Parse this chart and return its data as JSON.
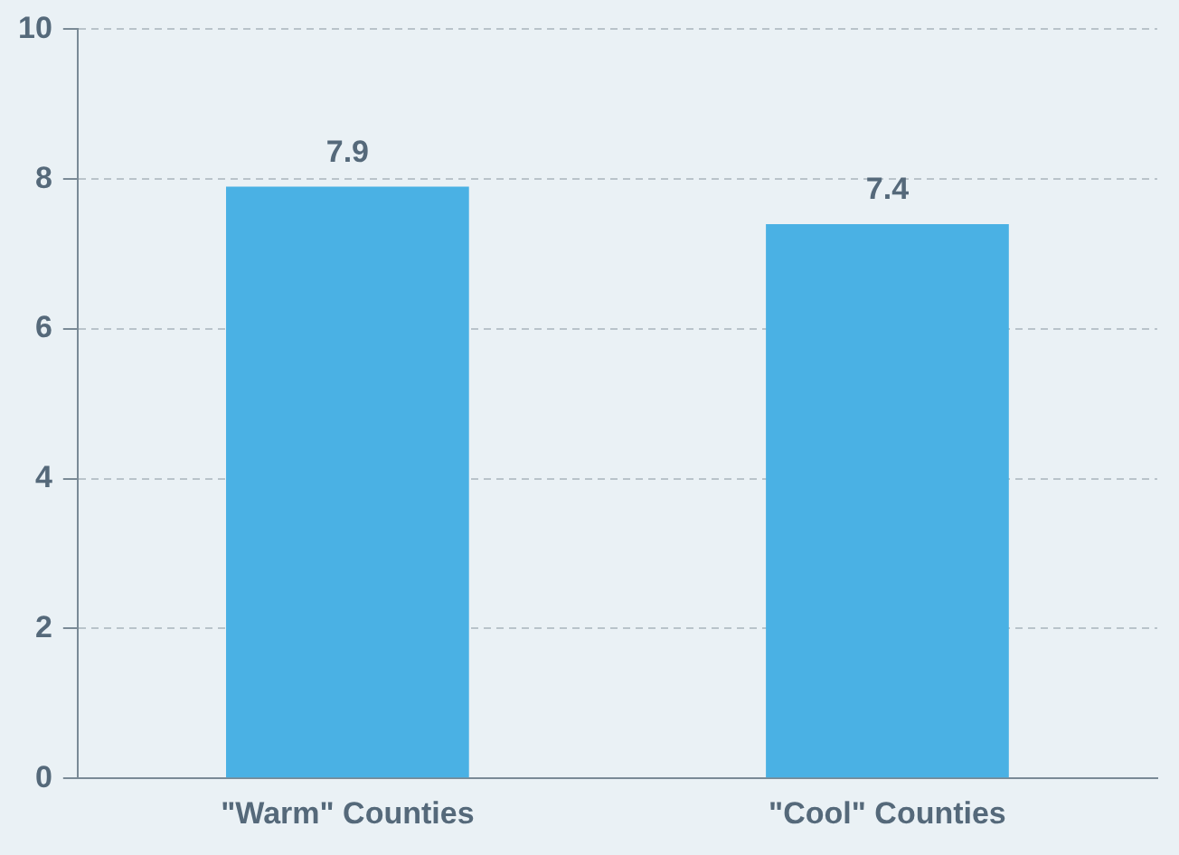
{
  "chart_data": {
    "type": "bar",
    "categories": [
      "\"Warm\" Counties",
      "\"Cool\" Counties"
    ],
    "values": [
      7.9,
      7.4
    ],
    "color": "#4ab1e4",
    "ylim": [
      0,
      10
    ],
    "yticks": [
      0,
      2,
      4,
      6,
      8,
      10
    ],
    "grid": "y",
    "data_labels": true,
    "legend": false
  }
}
